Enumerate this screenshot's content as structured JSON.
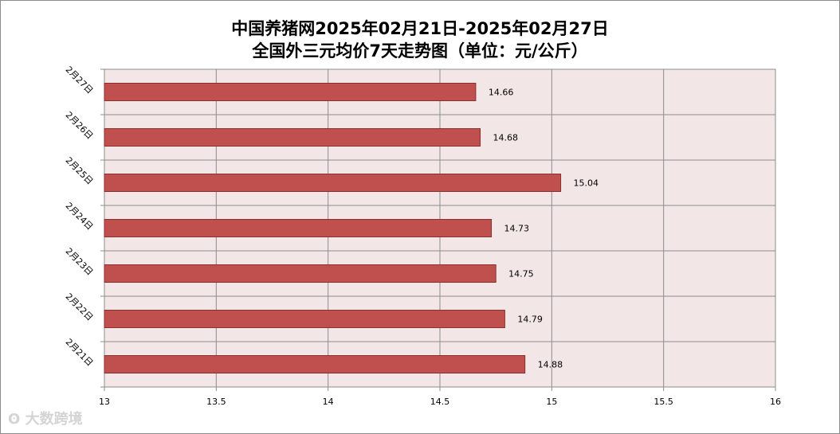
{
  "chart_data": {
    "type": "bar",
    "orientation": "horizontal",
    "title_line1": "中国养猪网2025年02月21日-2025年02月27日",
    "title_line2": "全国外三元均价7天走势图（单位：元/公斤）",
    "categories": [
      "2月27日",
      "2月26日",
      "2月25日",
      "2月24日",
      "2月23日",
      "2月22日",
      "2月21日"
    ],
    "values": [
      14.66,
      14.68,
      15.04,
      14.73,
      14.75,
      14.79,
      14.88
    ],
    "xlim": [
      13,
      16
    ],
    "x_ticks": [
      "13",
      "13.5",
      "14",
      "14.5",
      "15",
      "15.5",
      "16"
    ],
    "grid": true,
    "bar_color": "#c0504d",
    "plot_bg": "#f2e6e6"
  },
  "watermark": "大数跨境"
}
